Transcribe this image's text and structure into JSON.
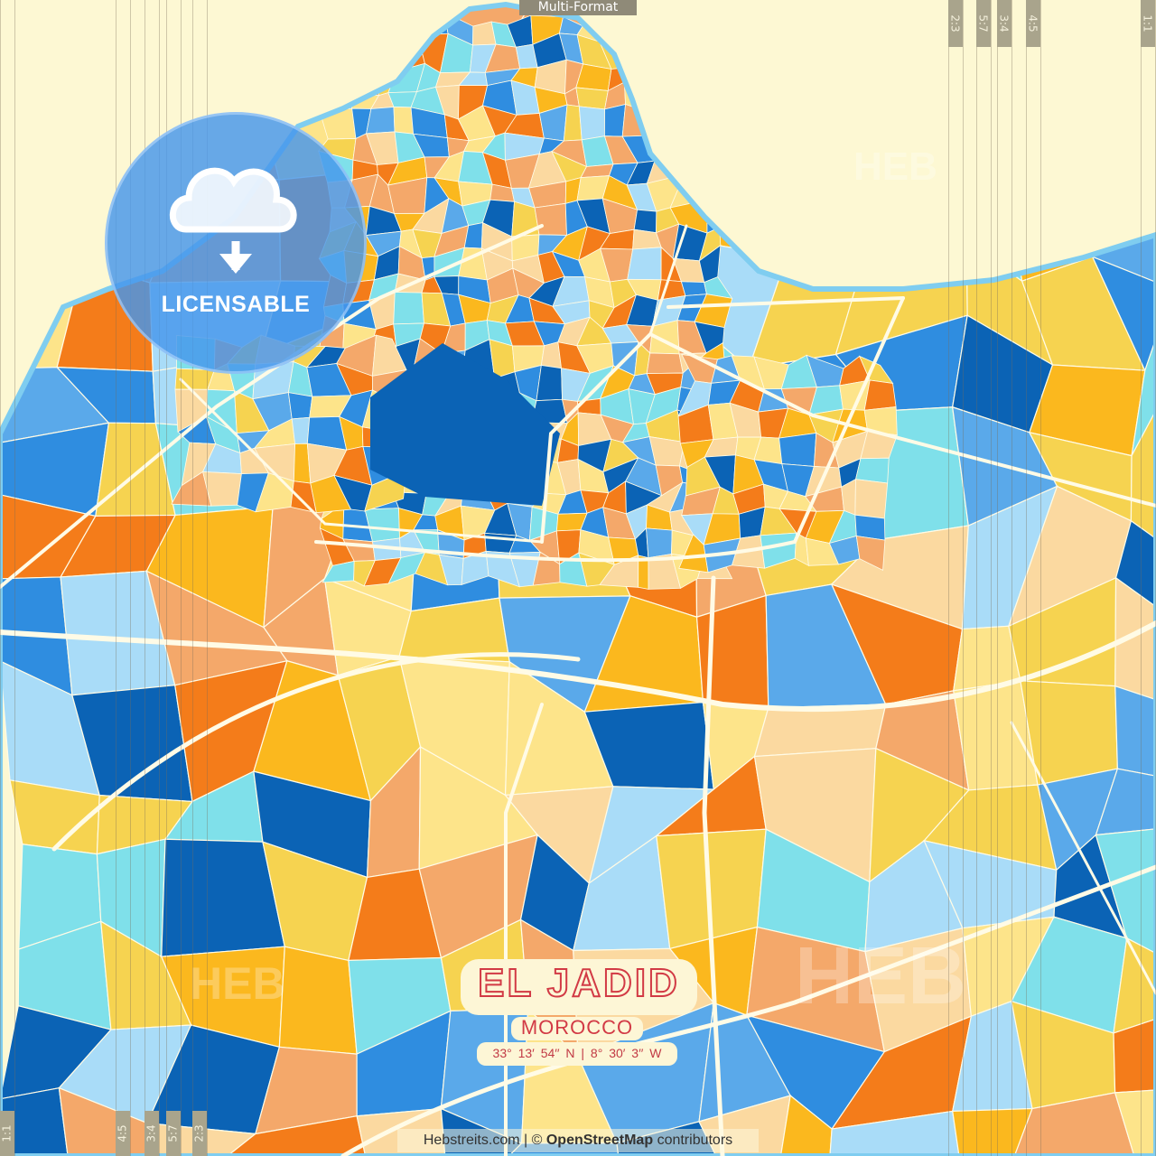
{
  "header": {
    "format_label": "Multi-Format"
  },
  "ratio_tabs_top": [
    "2:3",
    "5:7",
    "3:4",
    "4:5",
    "1:1"
  ],
  "ratio_tabs_bottom": [
    "1:1",
    "4:5",
    "3:4",
    "5:7",
    "2:3"
  ],
  "badge": {
    "icon": "cloud-download-icon",
    "label": "LICENSABLE"
  },
  "watermarks": [
    "HEB",
    "HEB",
    "HEB"
  ],
  "poster": {
    "city": "EL JADID",
    "country": "MOROCCO",
    "coordinates": "33°  13′  54′′ N  |  8°  30′  3′′ W"
  },
  "credit": {
    "site": "Hebstreits.com",
    "separator": "|",
    "copyright": "©",
    "osm": "OpenStreetMap",
    "contributors": "contributors"
  },
  "colors": {
    "sea": "#fdf8d3",
    "palette": [
      "#0b63b5",
      "#2f8de0",
      "#5aa9ea",
      "#a9dcf8",
      "#7fe0ea",
      "#fbb81e",
      "#f6d350",
      "#fde48a",
      "#f47c1a",
      "#f4a86a",
      "#fbd9a0"
    ],
    "accent": "#d23a45",
    "badge": "#4696eb"
  }
}
